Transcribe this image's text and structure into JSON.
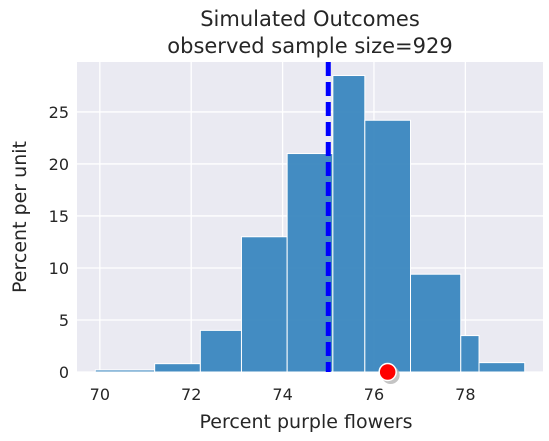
{
  "chart_data": {
    "type": "bar",
    "title": "Simulated Outcomes",
    "subtitle": "observed sample size=929",
    "xlabel": "Percent purple flowers",
    "ylabel": "Percent per unit",
    "xlim": [
      69.5,
      79.7
    ],
    "ylim": [
      0,
      29.8
    ],
    "xticks": [
      70,
      72,
      74,
      76,
      78
    ],
    "yticks": [
      0,
      5,
      10,
      15,
      20,
      25
    ],
    "grid": true,
    "bins": [
      {
        "start": 69.9,
        "end": 71.2,
        "value": 0.2
      },
      {
        "start": 71.2,
        "end": 72.2,
        "value": 0.8
      },
      {
        "start": 72.2,
        "end": 73.1,
        "value": 4.0
      },
      {
        "start": 73.1,
        "end": 74.1,
        "value": 13.0
      },
      {
        "start": 74.1,
        "end": 75.1,
        "value": 21.0
      },
      {
        "start": 75.1,
        "end": 75.8,
        "value": 28.5
      },
      {
        "start": 75.8,
        "end": 76.8,
        "value": 24.2
      },
      {
        "start": 76.8,
        "end": 77.9,
        "value": 9.4
      },
      {
        "start": 77.9,
        "end": 78.3,
        "value": 3.5
      },
      {
        "start": 78.3,
        "end": 79.3,
        "value": 0.9
      }
    ],
    "mean_line": {
      "x": 75.0,
      "color": "#0000ff",
      "style": "dashed"
    },
    "observed_point": {
      "x": 76.3,
      "y": 0,
      "color": "#ff0000"
    },
    "bar_color": "#3a87bf",
    "background_color": "#eaeaf2"
  }
}
